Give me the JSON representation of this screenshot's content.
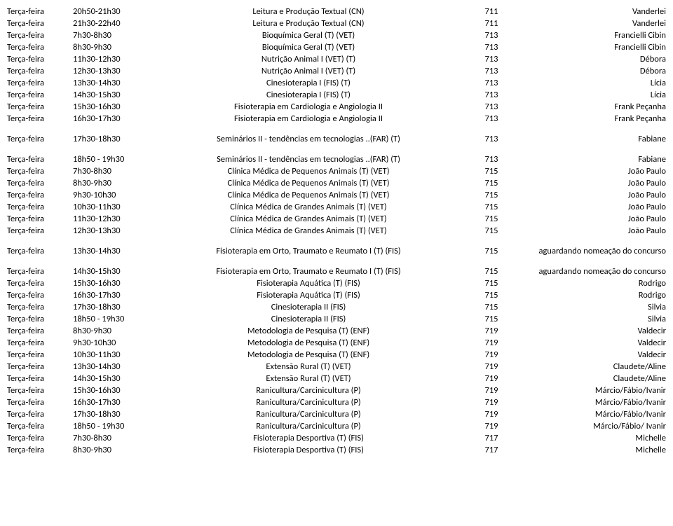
{
  "groups": [
    {
      "rows": [
        {
          "day": "Terça-feira",
          "time": "20h50-21h30",
          "desc": "Leitura e Produção Textual (CN)",
          "room": "711",
          "prof": "Vanderlei"
        },
        {
          "day": "Terça-feira",
          "time": "21h30-22h40",
          "desc": "Leitura e Produção Textual (CN)",
          "room": "711",
          "prof": "Vanderlei"
        },
        {
          "day": "Terça-feira",
          "time": "7h30-8h30",
          "desc": "Bioquímica Geral (T) (VET)",
          "room": "713",
          "prof": "Francielli Cibin"
        },
        {
          "day": "Terça-feira",
          "time": "8h30-9h30",
          "desc": "Bioquímica Geral (T) (VET)",
          "room": "713",
          "prof": "Francielli Cibin"
        },
        {
          "day": "Terça-feira",
          "time": "11h30-12h30",
          "desc": "Nutrição Animal I (VET) (T)",
          "room": "713",
          "prof": "Débora"
        },
        {
          "day": "Terça-feira",
          "time": "12h30-13h30",
          "desc": "Nutrição Animal I (VET) (T)",
          "room": "713",
          "prof": "Débora"
        },
        {
          "day": "Terça-feira",
          "time": "13h30-14h30",
          "desc": "Cinesioterapia I (FIS) (T)",
          "room": "713",
          "prof": "Lícia"
        },
        {
          "day": "Terça-feira",
          "time": "14h30-15h30",
          "desc": "Cinesioterapia I (FIS) (T)",
          "room": "713",
          "prof": "Lícia"
        },
        {
          "day": "Terça-feira",
          "time": "15h30-16h30",
          "desc": "Fisioterapia em Cardiologia e Angiologia II",
          "room": "713",
          "prof": "Frank Peçanha"
        },
        {
          "day": "Terça-feira",
          "time": "16h30-17h30",
          "desc": "Fisioterapia em Cardiologia e Angiologia II",
          "room": "713",
          "prof": "Frank Peçanha"
        }
      ]
    },
    {
      "rows": [
        {
          "day": "Terça-feira",
          "time": "17h30-18h30",
          "desc": "Seminários II - tendências em tecnologias ..(FAR) (T)",
          "room": "713",
          "prof": "Fabiane"
        }
      ]
    },
    {
      "rows": [
        {
          "day": "Terça-feira",
          "time": "18h50 - 19h30",
          "desc": "Seminários II - tendências em tecnologias ..(FAR) (T)",
          "room": "713",
          "prof": "Fabiane"
        },
        {
          "day": "Terça-feira",
          "time": "7h30-8h30",
          "desc": "Clínica Médica de Pequenos Animais (T) (VET)",
          "room": "715",
          "prof": "João Paulo"
        },
        {
          "day": "Terça-feira",
          "time": "8h30-9h30",
          "desc": "Clínica Médica de Pequenos Animais (T) (VET)",
          "room": "715",
          "prof": "João Paulo"
        },
        {
          "day": "Terça-feira",
          "time": "9h30-10h30",
          "desc": "Clínica Médica de Pequenos Animais (T) (VET)",
          "room": "715",
          "prof": "João Paulo"
        },
        {
          "day": "Terça-feira",
          "time": "10h30-11h30",
          "desc": "Clínica Médica de Grandes Animais (T) (VET)",
          "room": "715",
          "prof": "João Paulo"
        },
        {
          "day": "Terça-feira",
          "time": "11h30-12h30",
          "desc": "Clínica Médica de Grandes Animais (T) (VET)",
          "room": "715",
          "prof": "João Paulo"
        },
        {
          "day": "Terça-feira",
          "time": "12h30-13h30",
          "desc": "Clínica Médica de Grandes Animais (T) (VET)",
          "room": "715",
          "prof": "João Paulo"
        }
      ]
    },
    {
      "rows": [
        {
          "day": "Terça-feira",
          "time": "13h30-14h30",
          "desc": "Fisioterapia em Orto, Traumato e Reumato I (T) (FIS)",
          "room": "715",
          "prof": "aguardando nomeação do concurso"
        }
      ]
    },
    {
      "rows": [
        {
          "day": "Terça-feira",
          "time": "14h30-15h30",
          "desc": "Fisioterapia em Orto, Traumato e Reumato I (T) (FIS)",
          "room": "715",
          "prof": "aguardando nomeação do concurso"
        },
        {
          "day": "Terça-feira",
          "time": "15h30-16h30",
          "desc": "Fisioterapia Aquática (T) (FIS)",
          "room": "715",
          "prof": "Rodrigo"
        },
        {
          "day": "Terça-feira",
          "time": "16h30-17h30",
          "desc": "Fisioterapia Aquática (T) (FIS)",
          "room": "715",
          "prof": "Rodrigo"
        },
        {
          "day": "Terça-feira",
          "time": "17h30-18h30",
          "desc": "Cinesioterapia II (FIS)",
          "room": "715",
          "prof": "Silvia"
        },
        {
          "day": "Terça-feira",
          "time": "18h50 - 19h30",
          "desc": "Cinesioterapia II (FIS)",
          "room": "715",
          "prof": "Silvia"
        },
        {
          "day": "Terça-feira",
          "time": "8h30-9h30",
          "desc": "Metodologia de Pesquisa (T) (ENF)",
          "room": "719",
          "prof": "Valdecir"
        },
        {
          "day": "Terça-feira",
          "time": "9h30-10h30",
          "desc": "Metodologia de Pesquisa (T) (ENF)",
          "room": "719",
          "prof": "Valdecir"
        },
        {
          "day": "Terça-feira",
          "time": "10h30-11h30",
          "desc": "Metodologia de Pesquisa (T) (ENF)",
          "room": "719",
          "prof": "Valdecir"
        },
        {
          "day": "Terça-feira",
          "time": "13h30-14h30",
          "desc": "Extensão Rural (T) (VET)",
          "room": "719",
          "prof": "Claudete/Aline"
        },
        {
          "day": "Terça-feira",
          "time": "14h30-15h30",
          "desc": "Extensão Rural (T) (VET)",
          "room": "719",
          "prof": "Claudete/Aline"
        },
        {
          "day": "Terça-feira",
          "time": "15h30-16h30",
          "desc": "Ranicultura/Carcinicultura (P)",
          "room": "719",
          "prof": "Márcio/Fábio/Ivanir"
        },
        {
          "day": "Terça-feira",
          "time": "16h30-17h30",
          "desc": "Ranicultura/Carcinicultura (P)",
          "room": "719",
          "prof": "Márcio/Fábio/Ivanir"
        },
        {
          "day": "Terça-feira",
          "time": "17h30-18h30",
          "desc": "Ranicultura/Carcinicultura (P)",
          "room": "719",
          "prof": "Márcio/Fábio/Ivanir"
        },
        {
          "day": "Terça-feira",
          "time": "18h50 - 19h30",
          "desc": "Ranicultura/Carcinicultura (P)",
          "room": "719",
          "prof": "Márcio/Fábio/ Ivanir"
        },
        {
          "day": "Terça-feira",
          "time": "7h30-8h30",
          "desc": "Fisioterapia Desportiva (T) (FIS)",
          "room": "717",
          "prof": "Michelle"
        },
        {
          "day": "Terça-feira",
          "time": "8h30-9h30",
          "desc": "Fisioterapia Desportiva (T) (FIS)",
          "room": "717",
          "prof": "Michelle"
        }
      ]
    }
  ]
}
